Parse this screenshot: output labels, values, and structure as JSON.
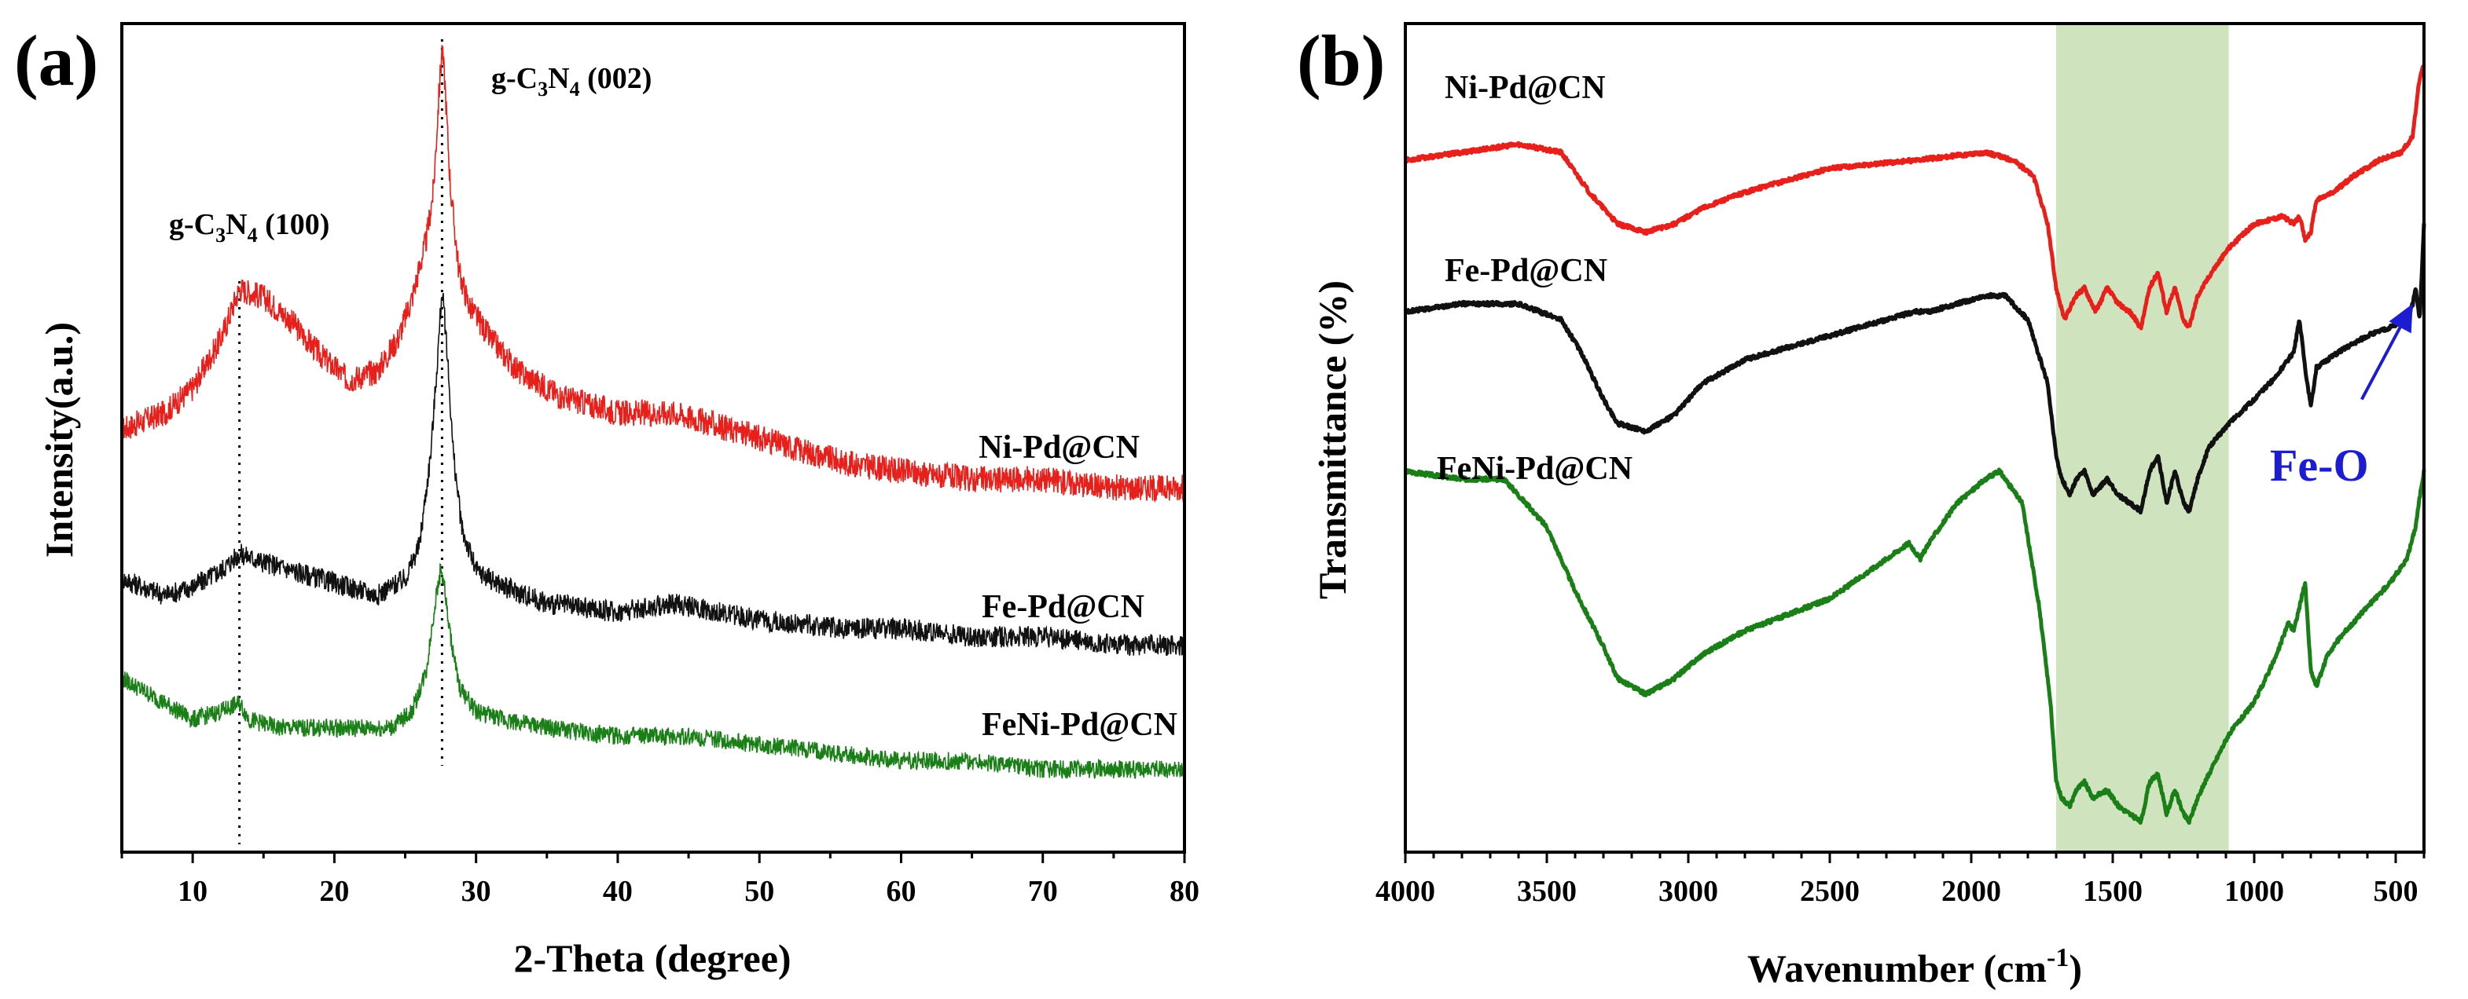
{
  "chart_data": [
    {
      "type": "line",
      "panel_label": "(a)",
      "xlabel": "2-Theta (degree)",
      "ylabel": "Intensity(a.u.)",
      "xlim": [
        5,
        80
      ],
      "ylim": [
        0,
        100
      ],
      "xticks": [
        10,
        20,
        30,
        40,
        50,
        60,
        70,
        80
      ],
      "grid": false,
      "reference_lines": [
        {
          "x": 13.3,
          "label_main": "g-C",
          "sub1": "3",
          "mid": "N",
          "sub2": "4",
          "tail": " (100)"
        },
        {
          "x": 27.6,
          "label_main": "g-C",
          "sub1": "3",
          "mid": "N",
          "sub2": "4",
          "tail": " (002)"
        }
      ],
      "series": [
        {
          "name": "Ni-Pd@CN",
          "color": "#e8201b",
          "noise": 1.6,
          "x": [
            5,
            8,
            10,
            12,
            13.3,
            15,
            17,
            19,
            21,
            23,
            24.5,
            25.5,
            26.5,
            27,
            27.4,
            27.6,
            27.8,
            28.2,
            28.8,
            29.5,
            31,
            33,
            36,
            40,
            44,
            48,
            52,
            56,
            60,
            65,
            70,
            75,
            80
          ],
          "y": [
            51,
            53,
            56,
            62,
            68,
            67,
            64,
            60,
            57,
            58,
            62,
            67,
            74,
            80,
            92,
            97,
            93,
            80,
            70,
            66,
            62,
            58,
            55,
            53,
            53,
            51,
            49,
            47,
            46,
            45,
            45,
            44,
            44
          ]
        },
        {
          "name": "Fe-Pd@CN",
          "color": "#111111",
          "noise": 1.3,
          "x": [
            5,
            8,
            10,
            12,
            13.3,
            15,
            17,
            19,
            21,
            23,
            25,
            26,
            26.8,
            27.3,
            27.6,
            27.9,
            28.4,
            29,
            30,
            32,
            35,
            40,
            44,
            50,
            56,
            60,
            65,
            70,
            75,
            80
          ],
          "y": [
            33,
            31,
            32,
            34,
            36,
            35,
            34,
            33,
            32,
            31,
            33,
            37,
            48,
            60,
            68,
            62,
            48,
            39,
            34,
            32,
            30,
            29,
            30,
            28,
            27,
            27,
            26,
            26,
            25,
            25
          ]
        },
        {
          "name": "FeNi-Pd@CN",
          "color": "#1a7f16",
          "noise": 1.1,
          "x": [
            5,
            8,
            10,
            12,
            13.3,
            14,
            16,
            19,
            22,
            24,
            25.5,
            26.5,
            27.1,
            27.5,
            27.7,
            28.1,
            28.8,
            30,
            32,
            35,
            40,
            45,
            50,
            55,
            60,
            65,
            70,
            75,
            80
          ],
          "y": [
            21,
            18,
            16,
            17,
            18,
            16,
            15,
            15,
            15,
            15,
            17,
            22,
            30,
            34,
            33,
            27,
            20,
            17,
            16,
            15,
            14,
            14,
            13,
            12,
            11,
            11,
            10,
            10,
            10
          ]
        }
      ]
    },
    {
      "type": "line",
      "panel_label": "(b)",
      "xlabel_main": "Wavenumber (cm",
      "xlabel_sup": "-1",
      "xlabel_tail": ")",
      "ylabel": "Transmittance (%)",
      "xlim": [
        4000,
        400
      ],
      "xticks": [
        4000,
        3500,
        3000,
        2500,
        2000,
        1500,
        1000,
        500
      ],
      "ylim": [
        0,
        100
      ],
      "grid": false,
      "shaded_band": {
        "from": 1700,
        "to": 1090,
        "color": "#cfe3bf"
      },
      "annotation": {
        "text": "Fe-O",
        "color": "#1c1cd1",
        "arrow_from_x": 620,
        "arrow_from_y": 56,
        "arrow_to_x": 440,
        "arrow_to_y": 68
      },
      "series": [
        {
          "name": "Ni-Pd@CN",
          "color": "#e8201b",
          "x": [
            4000,
            3800,
            3600,
            3450,
            3350,
            3250,
            3150,
            3050,
            2950,
            2800,
            2500,
            2200,
            1950,
            1850,
            1780,
            1730,
            1700,
            1670,
            1630,
            1600,
            1560,
            1520,
            1480,
            1440,
            1400,
            1370,
            1340,
            1310,
            1280,
            1250,
            1230,
            1200,
            1150,
            1090,
            1000,
            900,
            860,
            840,
            820,
            800,
            780,
            720,
            650,
            560,
            480,
            440,
            420,
            410,
            400
          ],
          "y": [
            86,
            87,
            88,
            87,
            82,
            78,
            77,
            78,
            80,
            82,
            85,
            86,
            87,
            86,
            84,
            78,
            70,
            66,
            69,
            70,
            67,
            70,
            68,
            67,
            65,
            70,
            72,
            67,
            70,
            66,
            65,
            69,
            72,
            75,
            78,
            79,
            78,
            79,
            76,
            77,
            81,
            82,
            84,
            86,
            87,
            89,
            95,
            97,
            98
          ]
        },
        {
          "name": "Fe-Pd@CN",
          "color": "#111111",
          "x": [
            4000,
            3800,
            3600,
            3450,
            3380,
            3300,
            3250,
            3150,
            3050,
            2950,
            2800,
            2500,
            2300,
            2200,
            2150,
            2050,
            1950,
            1880,
            1800,
            1730,
            1700,
            1680,
            1650,
            1630,
            1600,
            1570,
            1520,
            1480,
            1440,
            1400,
            1370,
            1340,
            1310,
            1280,
            1250,
            1230,
            1200,
            1160,
            1090,
            1000,
            920,
            860,
            840,
            820,
            800,
            780,
            700,
            600,
            520,
            460,
            440,
            430,
            415,
            400
          ],
          "y": [
            67,
            68,
            68,
            66,
            62,
            56,
            53,
            52,
            54,
            58,
            61,
            64,
            66,
            67,
            67,
            68,
            69,
            69,
            66,
            58,
            49,
            46,
            44,
            46,
            47,
            44,
            46,
            44,
            43,
            42,
            47,
            49,
            43,
            47,
            43,
            42,
            46,
            50,
            53,
            56,
            59,
            62,
            66,
            60,
            55,
            60,
            62,
            64,
            65,
            66,
            68,
            70,
            66,
            78
          ]
        },
        {
          "name": "FeNi-Pd@CN",
          "color": "#1a7f16",
          "x": [
            4000,
            3800,
            3650,
            3500,
            3400,
            3300,
            3250,
            3150,
            3050,
            2950,
            2800,
            2500,
            2300,
            2220,
            2180,
            2150,
            2050,
            1950,
            1900,
            1820,
            1760,
            1720,
            1700,
            1680,
            1650,
            1630,
            1600,
            1570,
            1520,
            1480,
            1440,
            1400,
            1370,
            1340,
            1310,
            1280,
            1250,
            1230,
            1200,
            1160,
            1090,
            1000,
            920,
            880,
            860,
            840,
            820,
            800,
            780,
            740,
            700,
            600,
            520,
            460,
            430,
            410,
            400
          ],
          "y": [
            47,
            46,
            46,
            40,
            32,
            25,
            21,
            19,
            21,
            24,
            27,
            31,
            36,
            38,
            36,
            38,
            43,
            46,
            47,
            43,
            30,
            18,
            8,
            6,
            5,
            7,
            8,
            6,
            7,
            5,
            4,
            3,
            8,
            9,
            4,
            7,
            4,
            3,
            6,
            9,
            14,
            18,
            24,
            28,
            27,
            30,
            33,
            22,
            20,
            24,
            26,
            30,
            33,
            36,
            40,
            45,
            47
          ]
        }
      ]
    }
  ],
  "panel_a": {
    "title": "(a)",
    "xlabel": "2-Theta (degree)",
    "ylabel": "Intensity(a.u.)",
    "peak1": {
      "pre": "g-C",
      "s1": "3",
      "mid": "N",
      "s2": "4",
      "post": " (100)"
    },
    "peak2": {
      "pre": "g-C",
      "s1": "3",
      "mid": "N",
      "s2": "4",
      "post": " (002)"
    },
    "legend": [
      "Ni-Pd@CN",
      "Fe-Pd@CN",
      "FeNi-Pd@CN"
    ]
  },
  "panel_b": {
    "title": "(b)",
    "xlabel_main": "Wavenumber (cm",
    "xlabel_sup": "-1",
    "xlabel_tail": ")",
    "ylabel": "Transmittance (%)",
    "legend": [
      "Ni-Pd@CN",
      "Fe-Pd@CN",
      "FeNi-Pd@CN"
    ],
    "annotation": "Fe-O"
  }
}
